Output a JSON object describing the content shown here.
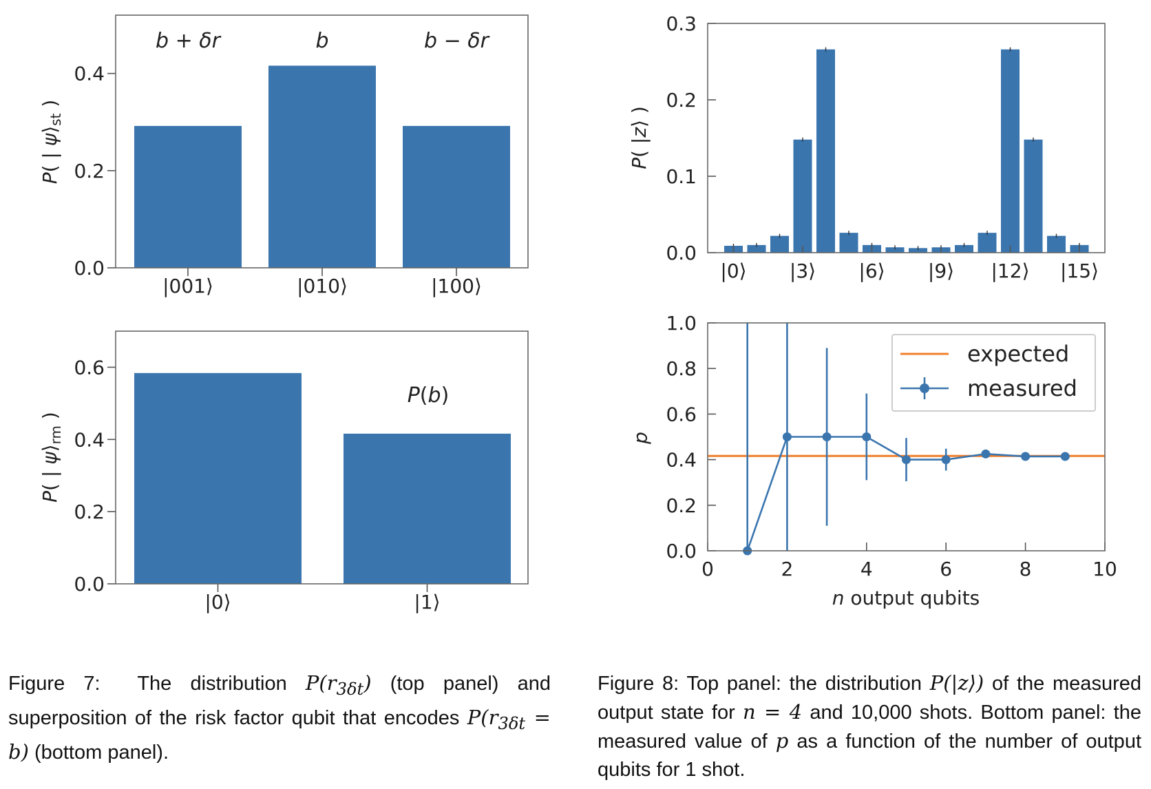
{
  "chart_data": [
    {
      "id": "fig7-top",
      "type": "bar",
      "categories": [
        "|001⟩",
        "|010⟩",
        "|100⟩"
      ],
      "values": [
        0.292,
        0.416,
        0.292
      ],
      "annotations": [
        "b + δr",
        "b",
        "b − δr"
      ],
      "ylabel": "P( | ψ⟩st )",
      "ylim": [
        0,
        0.52
      ],
      "yticks": [
        "0.0",
        "0.2",
        "0.4"
      ],
      "color": "#3a75ae"
    },
    {
      "id": "fig7-bottom",
      "type": "bar",
      "categories": [
        "|0⟩",
        "|1⟩"
      ],
      "values": [
        0.584,
        0.416
      ],
      "annotation": "P(b)",
      "ylabel": "P( | ψ⟩rm )",
      "ylim": [
        0,
        0.7
      ],
      "yticks": [
        "0.0",
        "0.2",
        "0.4",
        "0.6"
      ],
      "color": "#3a75ae"
    },
    {
      "id": "fig8-top",
      "type": "bar",
      "x": [
        0,
        1,
        2,
        3,
        4,
        5,
        6,
        7,
        8,
        9,
        10,
        11,
        12,
        13,
        14,
        15
      ],
      "values": [
        0.009,
        0.01,
        0.022,
        0.148,
        0.266,
        0.026,
        0.01,
        0.007,
        0.006,
        0.007,
        0.01,
        0.026,
        0.266,
        0.148,
        0.022,
        0.01
      ],
      "xtick_labels": [
        "|0⟩",
        "|3⟩",
        "|6⟩",
        "|9⟩",
        "|12⟩",
        "|15⟩"
      ],
      "xtick_positions": [
        0,
        3,
        6,
        9,
        12,
        15
      ],
      "ylabel": "P( |z⟩ )",
      "ylim": [
        0,
        0.3
      ],
      "yticks": [
        "0.0",
        "0.1",
        "0.2",
        "0.3"
      ],
      "color": "#3a75ae"
    },
    {
      "id": "fig8-bottom",
      "type": "line",
      "series": [
        {
          "name": "measured",
          "x": [
            1,
            2,
            3,
            4,
            5,
            6,
            7,
            8,
            9
          ],
          "y": [
            0.0,
            0.5,
            0.5,
            0.5,
            0.4,
            0.4,
            0.425,
            0.414,
            0.414
          ],
          "err_low": [
            0.0,
            1.5,
            0.39,
            0.19,
            0.095,
            0.048,
            0.018,
            0.006,
            0.004
          ],
          "err_high": [
            1.5,
            1.5,
            0.39,
            0.19,
            0.095,
            0.048,
            0.018,
            0.006,
            0.004
          ],
          "color": "#3a75ae"
        },
        {
          "name": "expected",
          "y_const": 0.416,
          "color": "#f07f2b"
        }
      ],
      "xlabel": "n output qubits",
      "ylabel": "p",
      "xlim": [
        0,
        10
      ],
      "ylim": [
        0,
        1.0
      ],
      "xticks": [
        "0",
        "2",
        "4",
        "6",
        "8",
        "10"
      ],
      "yticks": [
        "0.0",
        "0.2",
        "0.4",
        "0.6",
        "0.8",
        "1.0"
      ],
      "legend": {
        "placement": "top-right",
        "entries": [
          "expected",
          "measured"
        ]
      }
    }
  ],
  "captions": {
    "fig7": {
      "label": "Figure 7:",
      "t1": "The distribution",
      "m1": "P(r",
      "m1sub": "3δt",
      "m1end": ")",
      "t2": "(top panel) and superposition of the risk factor qubit that encodes",
      "m2": "P(r",
      "m2sub": "3δt",
      "m2end": " = b)",
      "t3": "(bottom panel)."
    },
    "fig8": {
      "label": "Figure 8:",
      "t1": "Top panel: the distribution",
      "m1": "P(|z⟩)",
      "t2": "of the measured output state for",
      "m2": "n = 4",
      "t3": "and 10,000 shots. Bottom panel: the measured value of",
      "m3": "p",
      "t4": "as a function of the number of output qubits for 1 shot."
    }
  }
}
